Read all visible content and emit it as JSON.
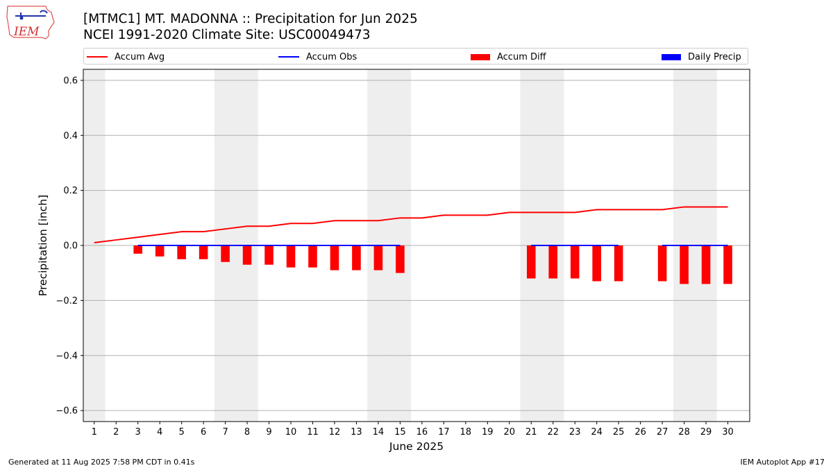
{
  "header": {
    "logo_text": "IEM",
    "title": "[MTMC1] MT. MADONNA :: Precipitation for Jun 2025",
    "subtitle": "NCEI 1991-2020 Climate Site: USC00049473"
  },
  "footer": {
    "left": "Generated at 11 Aug 2025 7:58 PM CDT in 0.41s",
    "right": "IEM Autoplot App #17"
  },
  "colors": {
    "accum_avg": "#ff0000",
    "accum_obs": "#0000ff",
    "accum_diff": "#ff0000",
    "daily_precip": "#0000ff",
    "weekend_band": "#eeeeee",
    "grid": "#b0b0b0"
  },
  "chart_data": {
    "type": "bar",
    "title": "[MTMC1] MT. MADONNA :: Precipitation for Jun 2025",
    "subtitle": "NCEI 1991-2020 Climate Site: USC00049473",
    "xlabel": "June 2025",
    "ylabel": "Precipitation [inch]",
    "xlim": [
      0.5,
      31
    ],
    "ylim": [
      -0.64,
      0.64
    ],
    "grid": true,
    "legend_placement": "top",
    "x": [
      1,
      2,
      3,
      4,
      5,
      6,
      7,
      8,
      9,
      10,
      11,
      12,
      13,
      14,
      15,
      16,
      17,
      18,
      19,
      20,
      21,
      22,
      23,
      24,
      25,
      26,
      27,
      28,
      29,
      30
    ],
    "x_tick_labels": [
      "1",
      "2",
      "3",
      "4",
      "5",
      "6",
      "7",
      "8",
      "9",
      "10",
      "11",
      "12",
      "13",
      "14",
      "15",
      "16",
      "17",
      "18",
      "19",
      "20",
      "21",
      "22",
      "23",
      "24",
      "25",
      "26",
      "27",
      "28",
      "29",
      "30"
    ],
    "y_ticks": [
      -0.6,
      -0.4,
      -0.2,
      0.0,
      0.2,
      0.4,
      0.6
    ],
    "y_tick_labels": [
      "−0.6",
      "−0.4",
      "−0.2",
      "0.0",
      "0.2",
      "0.4",
      "0.6"
    ],
    "weekend_days": [
      1,
      7,
      8,
      14,
      15,
      21,
      22,
      28,
      29
    ],
    "legend": [
      {
        "label": "Accum Avg",
        "kind": "line",
        "color": "#ff0000"
      },
      {
        "label": "Accum Obs",
        "kind": "line",
        "color": "#0000ff"
      },
      {
        "label": "Accum Diff",
        "kind": "bar",
        "color": "#ff0000"
      },
      {
        "label": "Daily Precip",
        "kind": "bar",
        "color": "#0000ff"
      }
    ],
    "series": [
      {
        "name": "Accum Avg",
        "kind": "line",
        "color": "#ff0000",
        "x": [
          1,
          2,
          3,
          4,
          5,
          6,
          7,
          8,
          9,
          10,
          11,
          12,
          13,
          14,
          15,
          16,
          17,
          18,
          19,
          20,
          21,
          22,
          23,
          24,
          25,
          26,
          27,
          28,
          29,
          30
        ],
        "values": [
          0.01,
          0.02,
          0.03,
          0.04,
          0.05,
          0.05,
          0.06,
          0.07,
          0.07,
          0.08,
          0.08,
          0.09,
          0.09,
          0.09,
          0.1,
          0.1,
          0.11,
          0.11,
          0.11,
          0.12,
          0.12,
          0.12,
          0.12,
          0.13,
          0.13,
          0.13,
          0.13,
          0.14,
          0.14,
          0.14
        ]
      },
      {
        "name": "Accum Obs",
        "kind": "line",
        "color": "#0000ff",
        "segments": [
          {
            "x": [
              3,
              4,
              5,
              6,
              7,
              8,
              9,
              10,
              11,
              12,
              13,
              14,
              15
            ],
            "values": [
              0,
              0,
              0,
              0,
              0,
              0,
              0,
              0,
              0,
              0,
              0,
              0,
              0
            ]
          },
          {
            "x": [
              21,
              22,
              23,
              24,
              25
            ],
            "values": [
              0,
              0,
              0,
              0,
              0
            ]
          },
          {
            "x": [
              27,
              28,
              29,
              30
            ],
            "values": [
              0,
              0,
              0,
              0
            ]
          }
        ]
      },
      {
        "name": "Accum Diff",
        "kind": "bar",
        "color": "#ff0000",
        "x": [
          3,
          4,
          5,
          6,
          7,
          8,
          9,
          10,
          11,
          12,
          13,
          14,
          15,
          21,
          22,
          23,
          24,
          25,
          27,
          28,
          29,
          30
        ],
        "values": [
          -0.03,
          -0.04,
          -0.05,
          -0.05,
          -0.06,
          -0.07,
          -0.07,
          -0.08,
          -0.08,
          -0.09,
          -0.09,
          -0.09,
          -0.1,
          -0.12,
          -0.12,
          -0.12,
          -0.13,
          -0.13,
          -0.13,
          -0.14,
          -0.14,
          -0.14
        ]
      },
      {
        "name": "Daily Precip",
        "kind": "bar",
        "color": "#0000ff",
        "x": [
          3,
          4,
          5,
          6,
          7,
          8,
          9,
          10,
          11,
          12,
          13,
          14,
          15,
          21,
          22,
          23,
          24,
          25,
          27,
          28,
          29,
          30
        ],
        "values": [
          0,
          0,
          0,
          0,
          0,
          0,
          0,
          0,
          0,
          0,
          0,
          0,
          0,
          0,
          0,
          0,
          0,
          0,
          0,
          0,
          0,
          0
        ]
      }
    ]
  }
}
